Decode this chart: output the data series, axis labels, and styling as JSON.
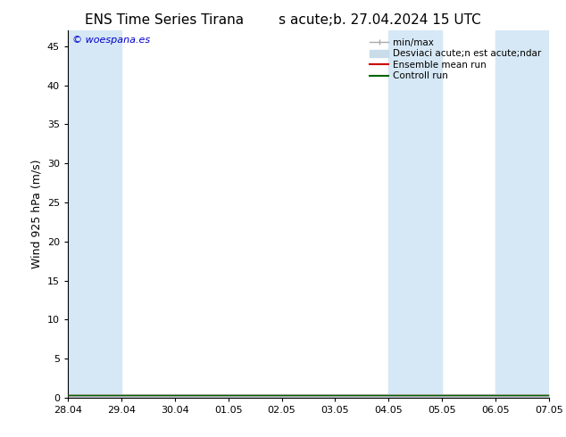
{
  "title_left": "ENS Time Series Tirana",
  "title_right": "s acute;b. 27.04.2024 15 UTC",
  "ylabel": "Wind 925 hPa (m/s)",
  "xlim": [
    0,
    9
  ],
  "ylim": [
    0,
    47
  ],
  "yticks": [
    0,
    5,
    10,
    15,
    20,
    25,
    30,
    35,
    40,
    45
  ],
  "xtick_labels": [
    "28.04",
    "29.04",
    "30.04",
    "01.05",
    "02.05",
    "03.05",
    "04.05",
    "05.05",
    "06.05",
    "07.05"
  ],
  "xtick_positions": [
    0,
    1,
    2,
    3,
    4,
    5,
    6,
    7,
    8,
    9
  ],
  "shaded_bands": [
    {
      "x_start": 0.0,
      "x_end": 1.0,
      "color": "#d6e8f5"
    },
    {
      "x_start": 6.0,
      "x_end": 7.0,
      "color": "#d6e8f5"
    },
    {
      "x_start": 8.0,
      "x_end": 9.0,
      "color": "#d6e8f5"
    }
  ],
  "mean_line_color": "#cc0000",
  "control_line_color": "#006600",
  "background_color": "#ffffff",
  "plot_bg_color": "#ffffff",
  "watermark": "© woespana.es",
  "watermark_color": "#0000cc",
  "legend_minmax_color": "#aaaaaa",
  "legend_std_color": "#c8dcea",
  "title_fontsize": 11,
  "axis_fontsize": 9,
  "tick_fontsize": 8,
  "legend_fontsize": 7.5
}
